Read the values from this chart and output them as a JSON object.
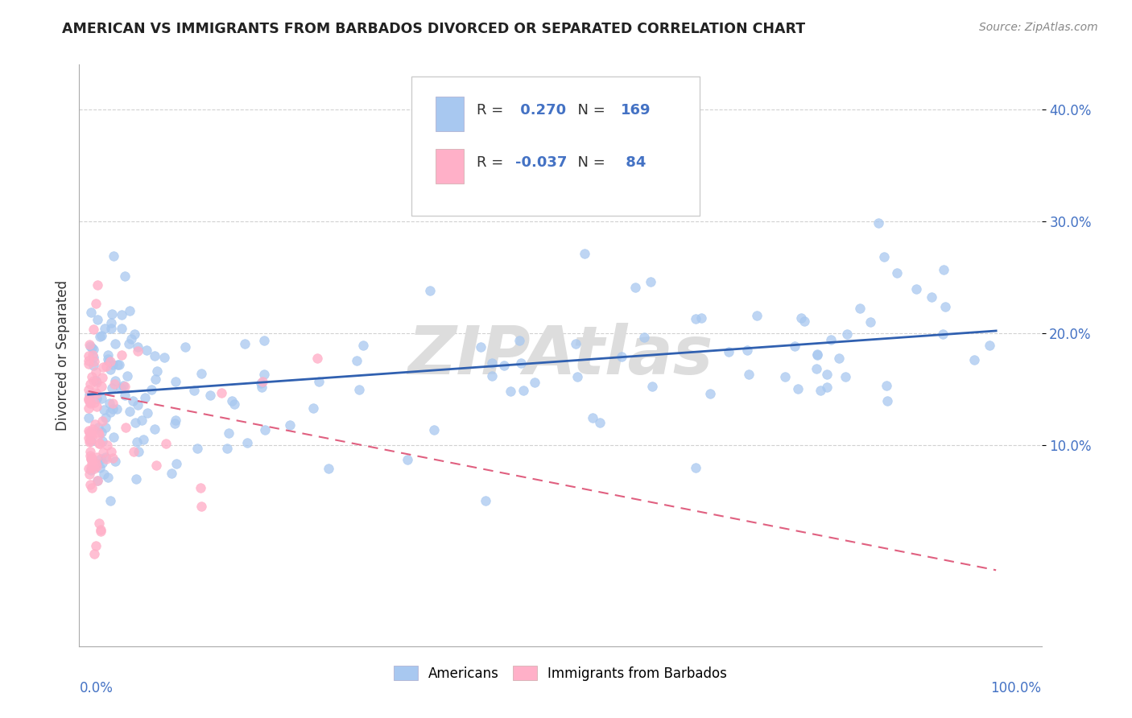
{
  "title": "AMERICAN VS IMMIGRANTS FROM BARBADOS DIVORCED OR SEPARATED CORRELATION CHART",
  "source": "Source: ZipAtlas.com",
  "ylabel": "Divorced or Separated",
  "ylim": [
    0.0,
    0.44
  ],
  "xlim": [
    -0.01,
    1.05
  ],
  "yticks": [
    0.1,
    0.2,
    0.3,
    0.4
  ],
  "ytick_labels": [
    "10.0%",
    "20.0%",
    "30.0%",
    "40.0%"
  ],
  "blue_R": 0.27,
  "blue_N": 169,
  "pink_R": -0.037,
  "pink_N": 84,
  "blue_scatter_color": "#a8c8f0",
  "blue_line_color": "#3060b0",
  "pink_scatter_color": "#ffb0c8",
  "pink_line_color": "#e06080",
  "watermark": "ZIPAtlas",
  "background_color": "#ffffff",
  "grid_color": "#cccccc",
  "title_color": "#222222",
  "source_color": "#888888",
  "ylabel_color": "#333333",
  "tick_color": "#4472c4",
  "xlabel_color": "#4472c4",
  "legend_border_color": "#cccccc",
  "legend_text_color": "#333333",
  "legend_val_color": "#4472c4"
}
